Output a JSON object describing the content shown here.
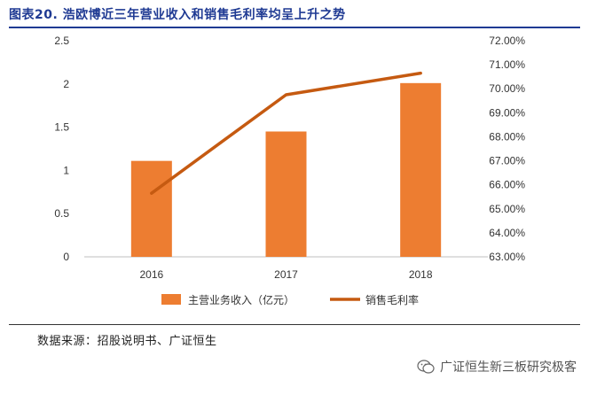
{
  "title": "图表20.  浩欧博近三年营业收入和销售毛利率均呈上升之势",
  "source": "数据来源：招股说明书、广证恒生",
  "watermark": "广证恒生新三板研究极客",
  "colors": {
    "bar": "#ED7D31",
    "line": "#C55A11",
    "title": "#1f3a93"
  },
  "chart_data": {
    "type": "bar",
    "categories": [
      "2016",
      "2017",
      "2018"
    ],
    "series": [
      {
        "name": "主营业务收入（亿元）",
        "type": "bar",
        "axis": "left",
        "values": [
          1.11,
          1.45,
          2.01
        ]
      },
      {
        "name": "销售毛利率",
        "type": "line",
        "axis": "right",
        "values": [
          65.65,
          69.75,
          70.65
        ]
      }
    ],
    "y_left": {
      "lim": [
        0,
        2.5
      ],
      "ticks": [
        "0",
        "0.5",
        "1",
        "1.5",
        "2",
        "2.5"
      ]
    },
    "y_right": {
      "lim": [
        63.0,
        72.0
      ],
      "ticks": [
        "63.00%",
        "64.00%",
        "65.00%",
        "66.00%",
        "67.00%",
        "68.00%",
        "69.00%",
        "70.00%",
        "71.00%",
        "72.00%"
      ]
    },
    "grid": false,
    "legend_position": "bottom"
  }
}
